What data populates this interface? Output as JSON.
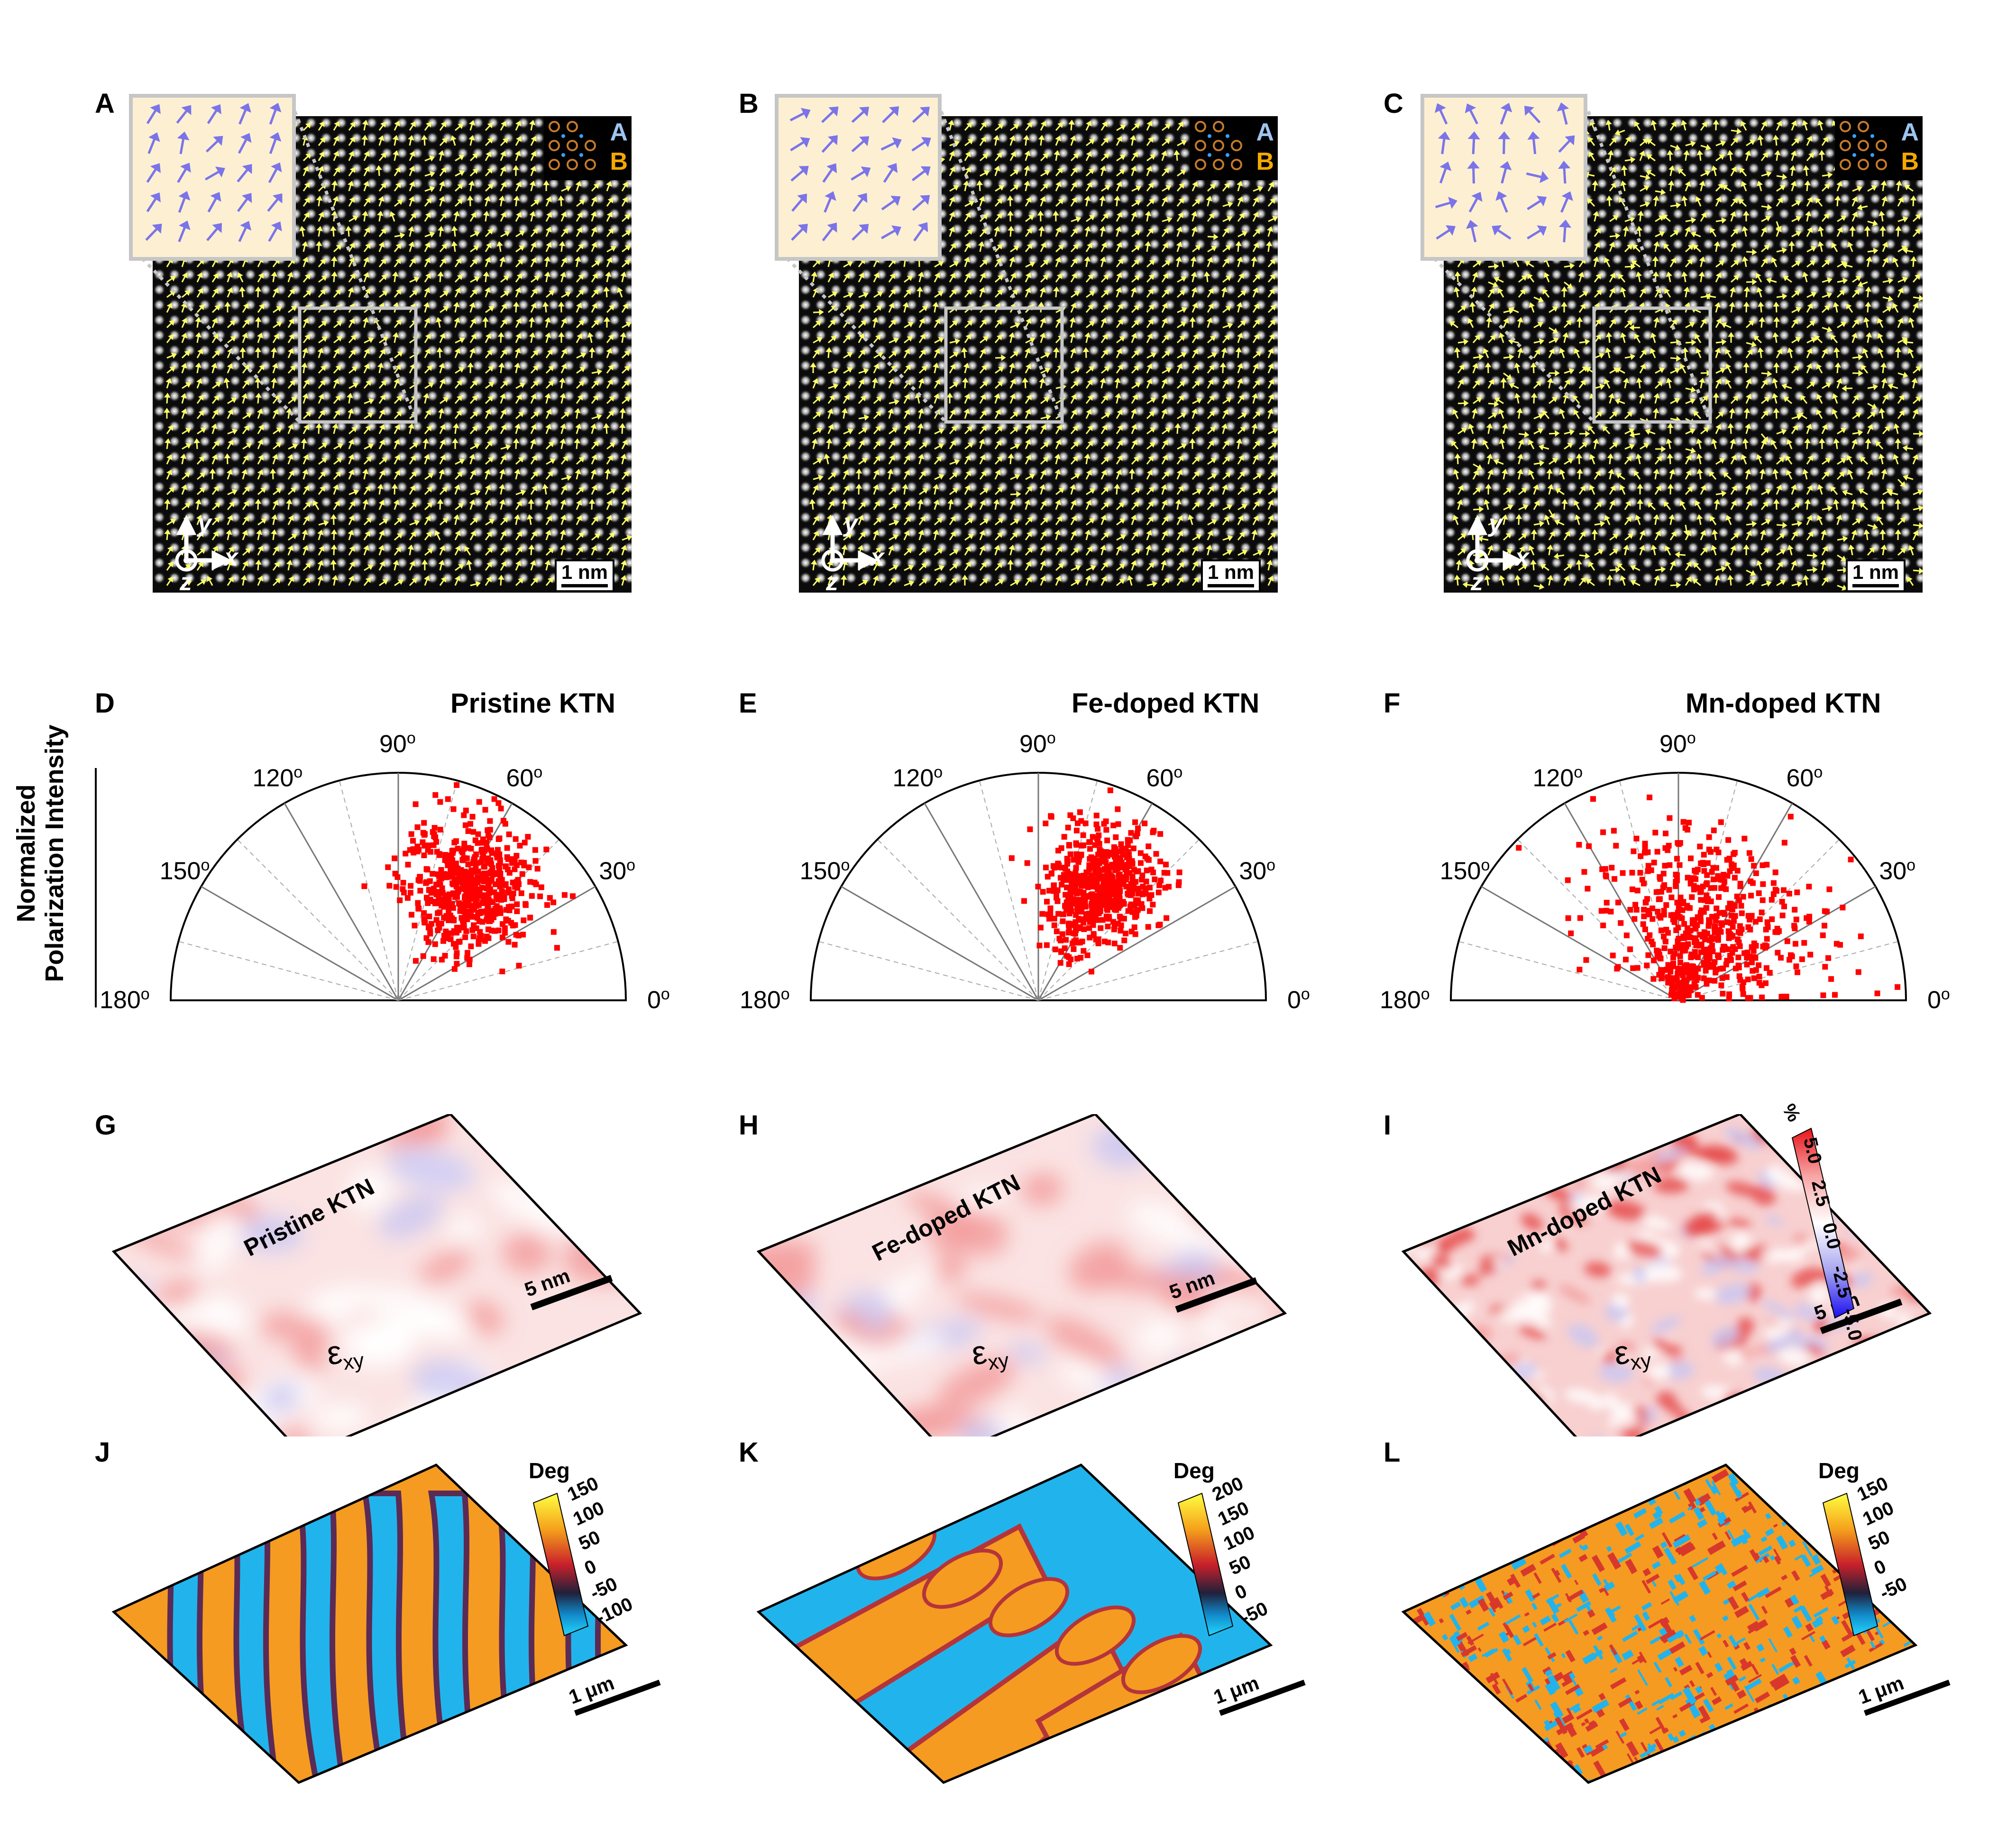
{
  "panels": {
    "A": "A",
    "B": "B",
    "C": "C",
    "D": "D",
    "E": "E",
    "F": "F",
    "G": "G",
    "H": "H",
    "I": "I",
    "J": "J",
    "K": "K",
    "L": "L"
  },
  "stem": {
    "scale_label": "1 nm",
    "legend_A": "A",
    "legend_B": "B",
    "axis_x": "x",
    "axis_y": "y",
    "axis_z": "z"
  },
  "polar": {
    "ylabel_line1": "Normalized",
    "ylabel_line2": "Polarization Intensity",
    "angles": [
      "0",
      "30",
      "60",
      "90",
      "120",
      "150",
      "180"
    ],
    "degree_mark": "o",
    "titles": [
      "Pristine KTN",
      "Fe-doped KTN",
      "Mn-doped KTN"
    ]
  },
  "chart_data": [
    {
      "type": "scatter",
      "title": "Pristine KTN",
      "coordinate_system": "polar (upper half)",
      "theta_range_deg": [
        0,
        180
      ],
      "r_range": [
        0,
        1
      ],
      "point_color": "#ff0000",
      "cluster": {
        "theta_center_deg": 57,
        "theta_spread_deg": 14,
        "r_center": 0.6,
        "r_spread": 0.13
      },
      "n_points": 600
    },
    {
      "type": "scatter",
      "title": "Fe-doped KTN",
      "coordinate_system": "polar (upper half)",
      "theta_range_deg": [
        0,
        180
      ],
      "r_range": [
        0,
        1
      ],
      "point_color": "#ff0000",
      "cluster": {
        "theta_center_deg": 62,
        "theta_spread_deg": 12,
        "r_center": 0.58,
        "r_spread": 0.14
      },
      "n_points": 600
    },
    {
      "type": "scatter",
      "title": "Mn-doped KTN",
      "coordinate_system": "polar (upper half)",
      "theta_range_deg": [
        0,
        180
      ],
      "r_range": [
        0,
        1
      ],
      "point_color": "#ff0000",
      "cluster": {
        "theta_center_deg": 70,
        "theta_spread_deg": 32,
        "r_center": 0.38,
        "r_spread": 0.22
      },
      "n_points": 650
    }
  ],
  "strain": {
    "labels": [
      "Pristine KTN",
      "Fe-doped KTN",
      "Mn-doped KTN"
    ],
    "eps_symbol": "ε",
    "eps_sub": "xy",
    "scale_label": "5 nm",
    "colorbar_unit": "%",
    "colorbar_ticks": [
      "5.0",
      "2.5",
      "0.0",
      "-2.5",
      "-5.0"
    ]
  },
  "pfm": {
    "scale_label": "1 μm",
    "colorbar_title": "Deg",
    "ticks_J": [
      "150",
      "100",
      "50",
      "0",
      "-50",
      "-100"
    ],
    "ticks_K": [
      "200",
      "150",
      "100",
      "50",
      "0",
      "-50"
    ],
    "ticks_L": [
      "150",
      "100",
      "50",
      "0",
      "-50"
    ]
  },
  "colors": {
    "polar_point": "#ff0000",
    "arrow_stem": "#ffff66",
    "arrow_inset": "#7b74e8",
    "inset_bg": "#fdf0d2",
    "pfm_blue": "#21b4ec",
    "pfm_orange": "#f59b21"
  }
}
